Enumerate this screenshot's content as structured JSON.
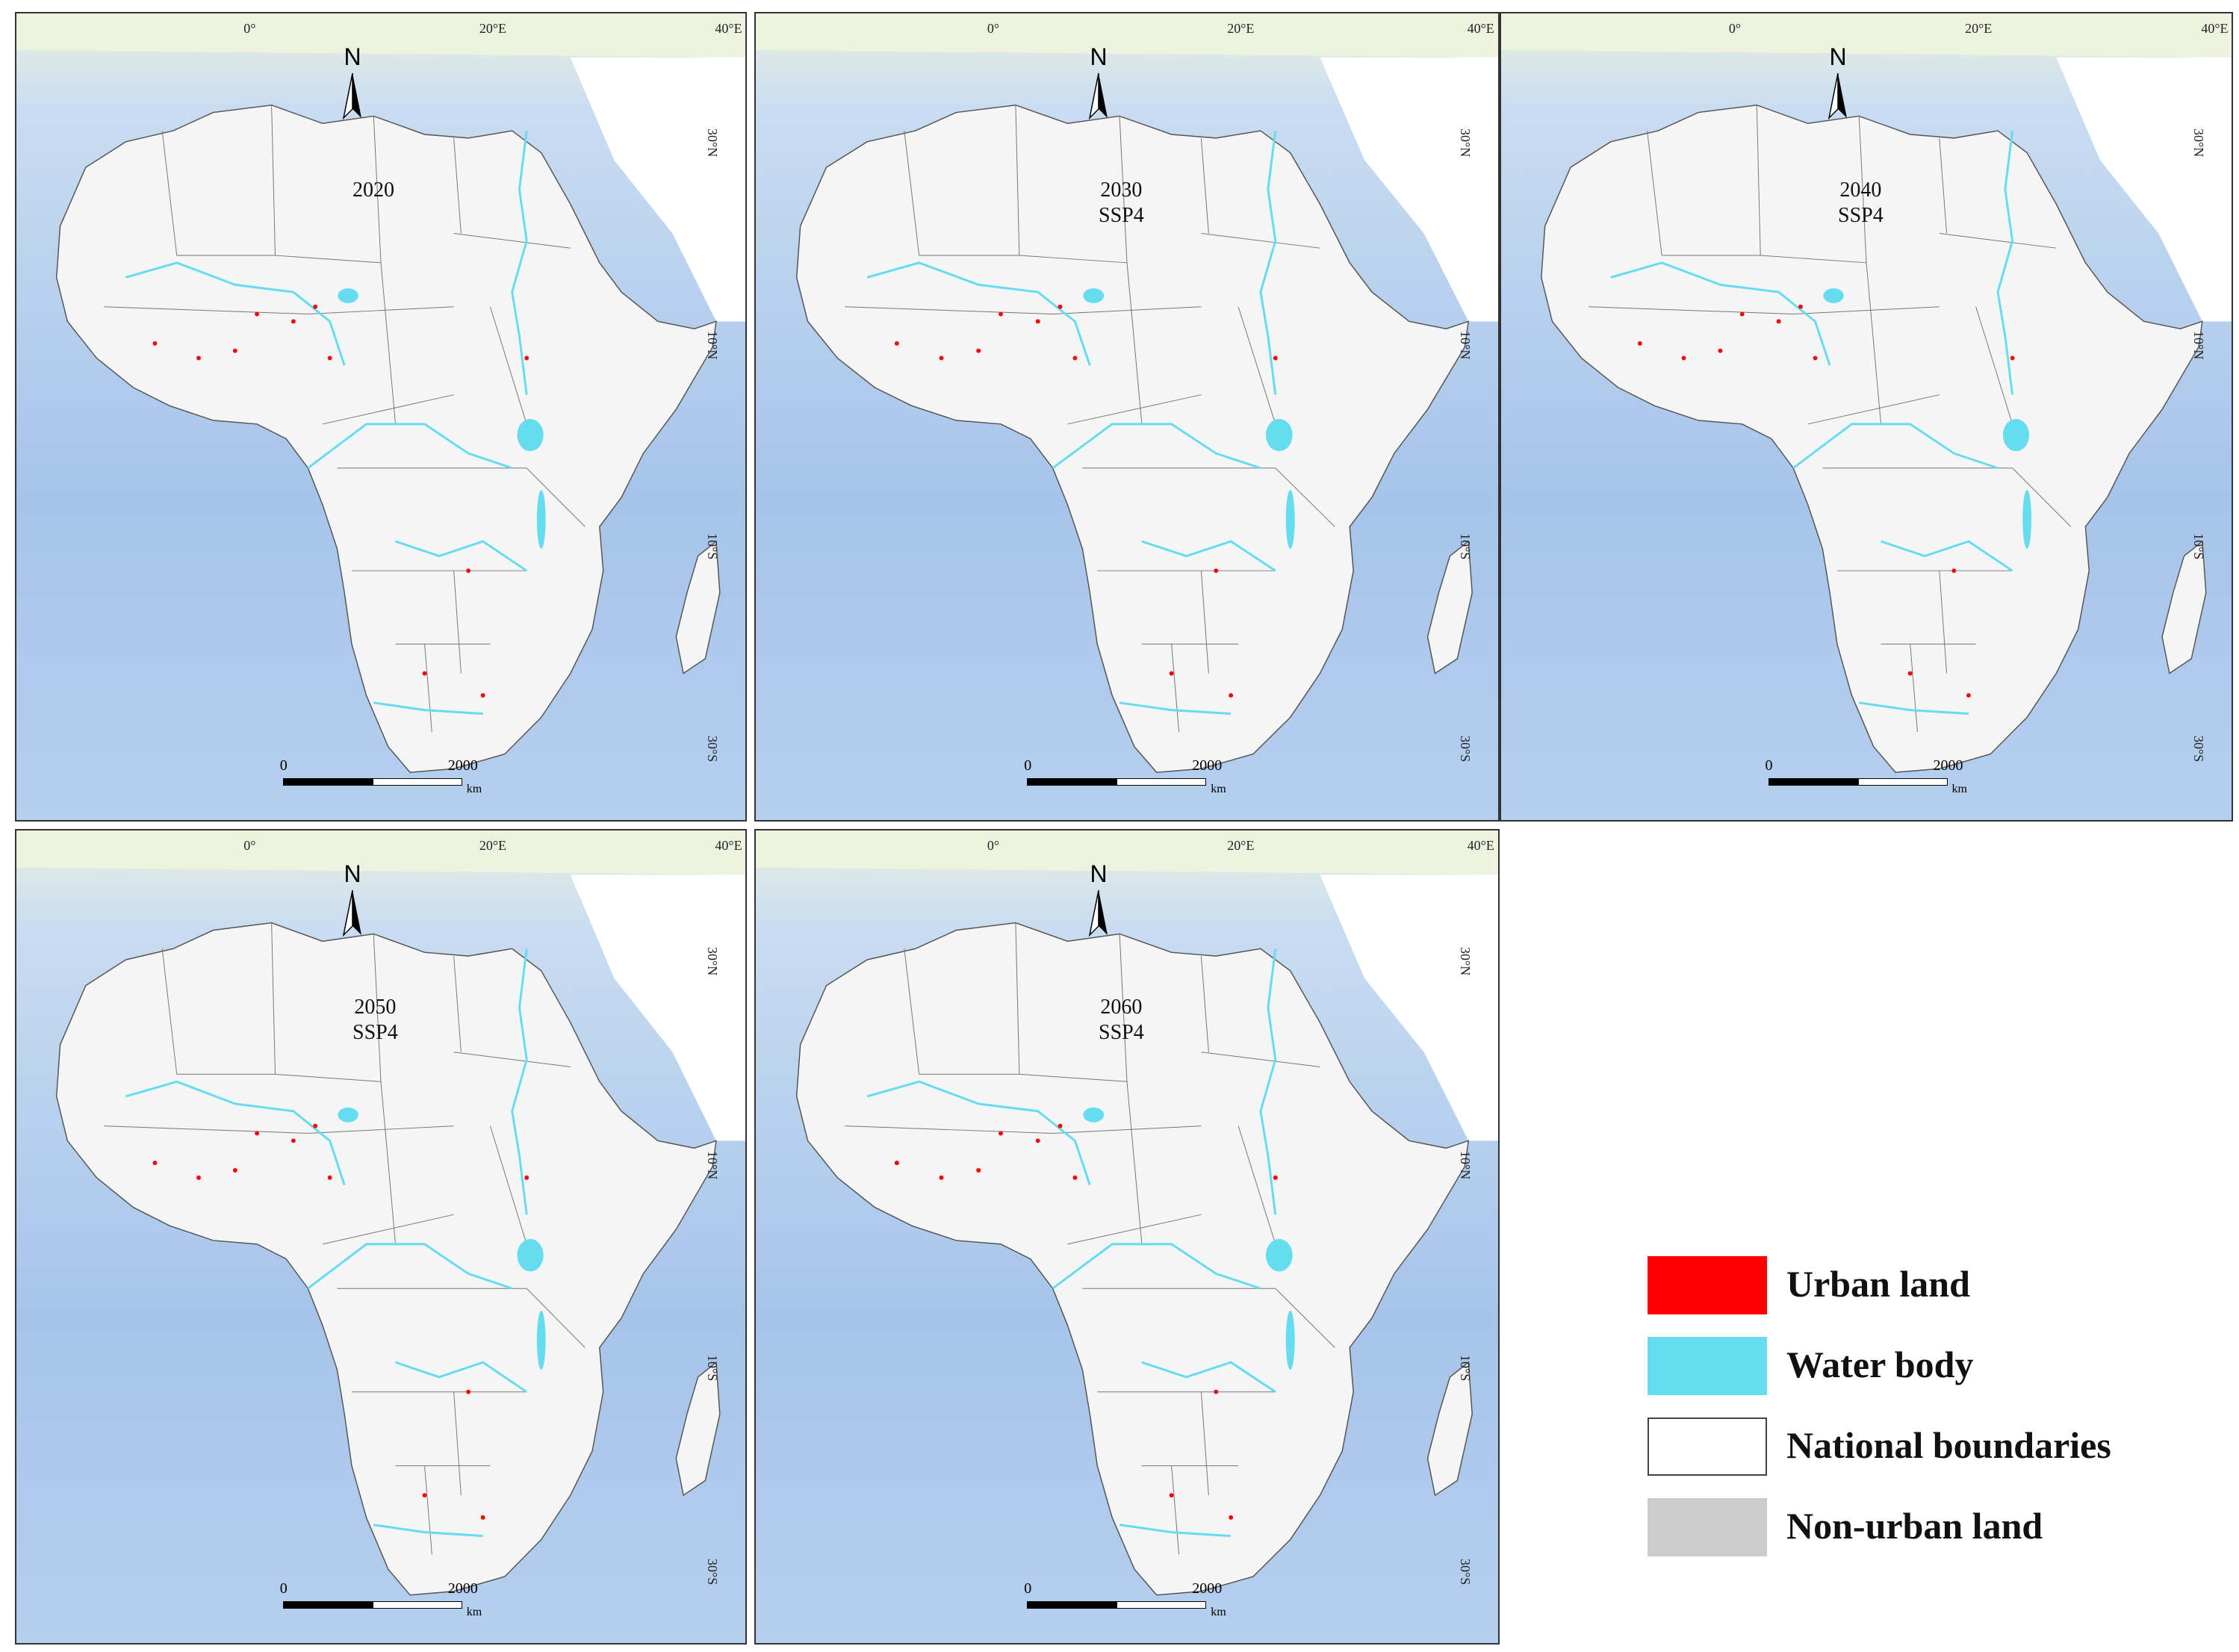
{
  "panels": [
    {
      "year": "2020",
      "scenario": ""
    },
    {
      "year": "2030",
      "scenario": "SSP4"
    },
    {
      "year": "2040",
      "scenario": "SSP4"
    },
    {
      "year": "2050",
      "scenario": "SSP4"
    },
    {
      "year": "2060",
      "scenario": "SSP4"
    }
  ],
  "axis_labels": {
    "lon": [
      "0°",
      "20°E",
      "40°E"
    ],
    "lat": [
      "30°N",
      "10°N",
      "10°S",
      "30°S"
    ]
  },
  "north_arrow": "N",
  "scale_bar": {
    "start": "0",
    "end": "2000",
    "unit": "km"
  },
  "legend": [
    {
      "label": "Urban land",
      "color": "#ff0000"
    },
    {
      "label": "Water body",
      "color": "#66dcf0"
    },
    {
      "label": "National boundaries",
      "color": "#ffffff"
    },
    {
      "label": "Non-urban land",
      "color": "#cccccc"
    }
  ],
  "colors": {
    "ocean": "#a9c7ea",
    "land": "#f5f5f5",
    "urban": "#ff0000",
    "water": "#66dcf0"
  }
}
